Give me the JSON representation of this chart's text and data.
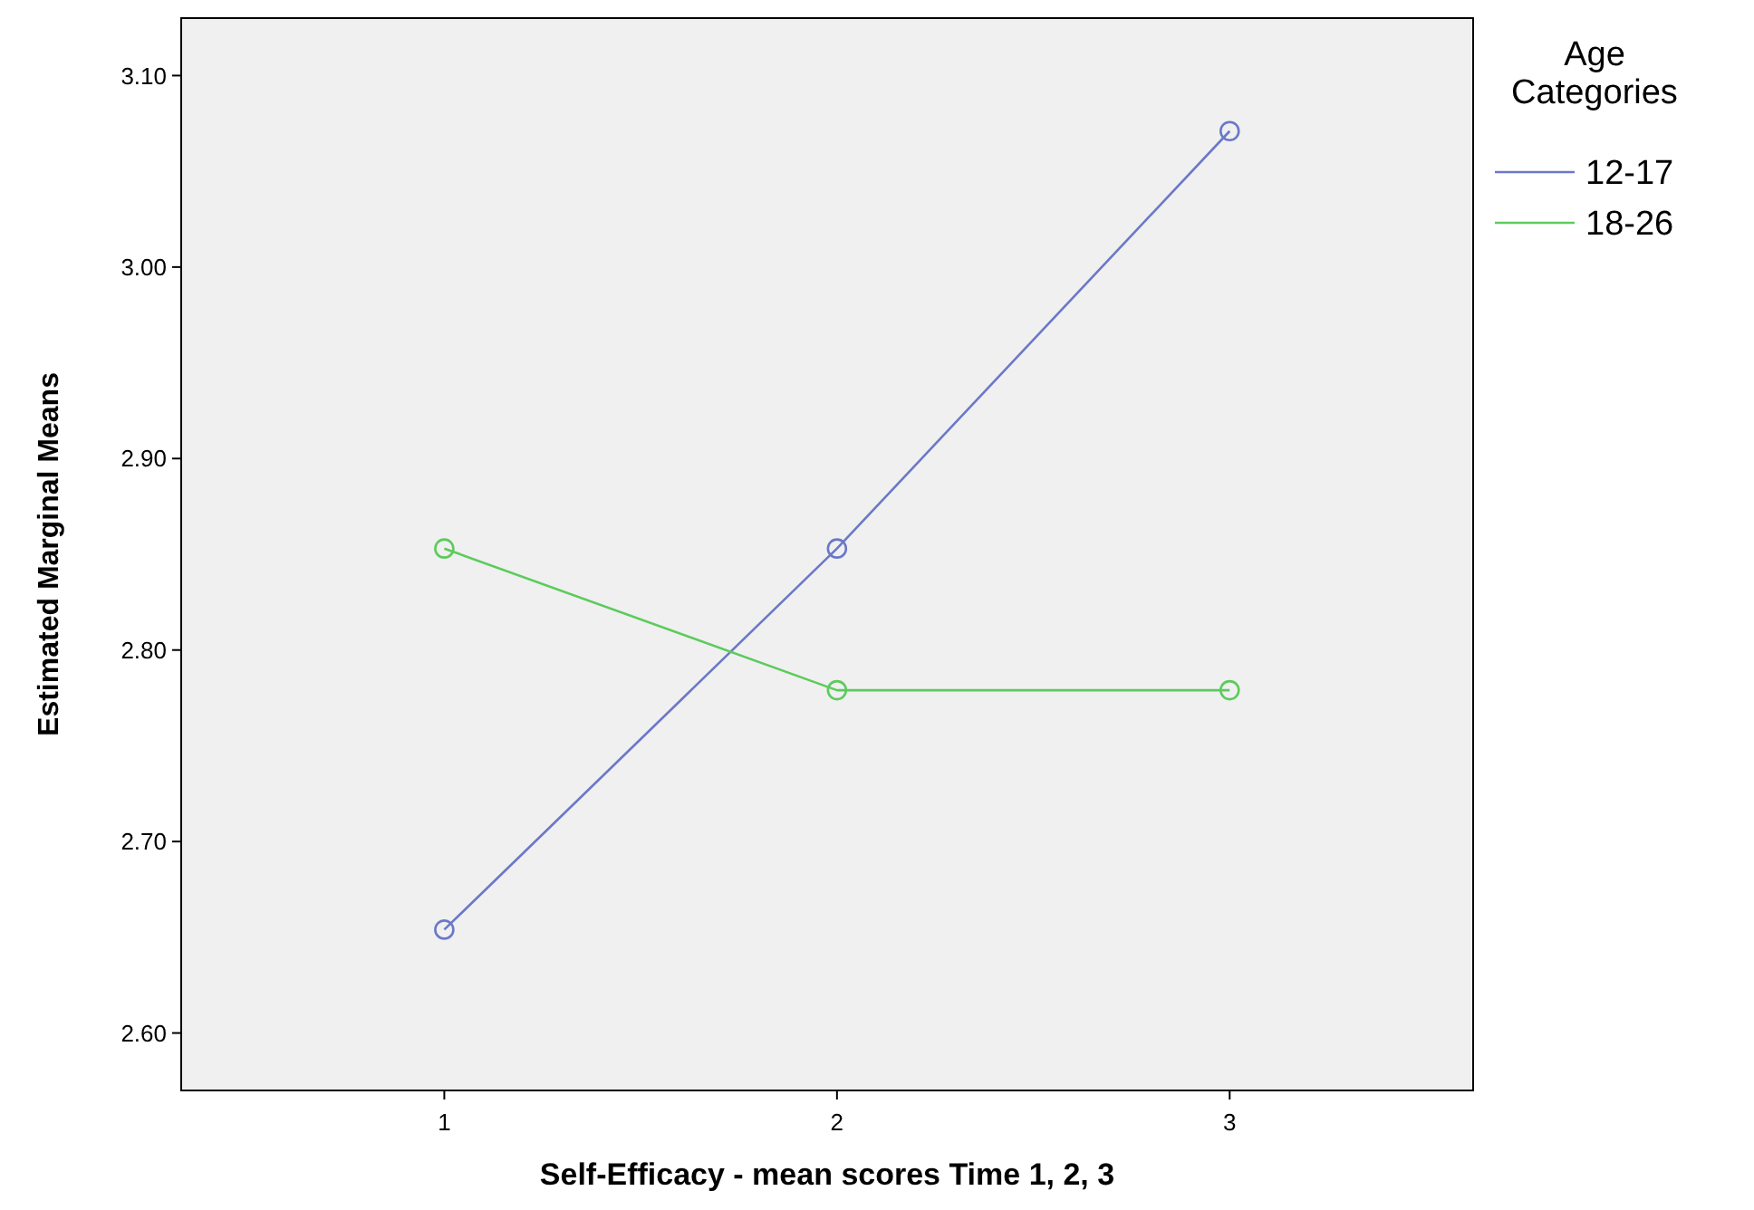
{
  "chart_data": {
    "type": "line",
    "xlabel": "Self-Efficacy - mean scores Time 1, 2, 3",
    "ylabel": "Estimated Marginal Means",
    "legend_title": "Age Categories",
    "x": [
      1,
      2,
      3
    ],
    "xlim": [
      0.33,
      3.62
    ],
    "xticks": [
      1,
      2,
      3
    ],
    "ylim": [
      2.57,
      3.13
    ],
    "yticks": [
      {
        "value": 2.6,
        "label": "2.60"
      },
      {
        "value": 2.7,
        "label": "2.70"
      },
      {
        "value": 2.8,
        "label": "2.80"
      },
      {
        "value": 2.9,
        "label": "2.90"
      },
      {
        "value": 3.0,
        "label": "3.00"
      },
      {
        "value": 3.1,
        "label": "3.10"
      }
    ],
    "grid": false,
    "legend": "top right",
    "marker": "circle",
    "line_style": "solid",
    "series": [
      {
        "name": "12-17",
        "color": "#6b78c8",
        "values": [
          2.654,
          2.853,
          3.071
        ]
      },
      {
        "name": "18-26",
        "color": "#5ccb5c",
        "values": [
          2.853,
          2.779,
          2.779
        ]
      }
    ]
  }
}
